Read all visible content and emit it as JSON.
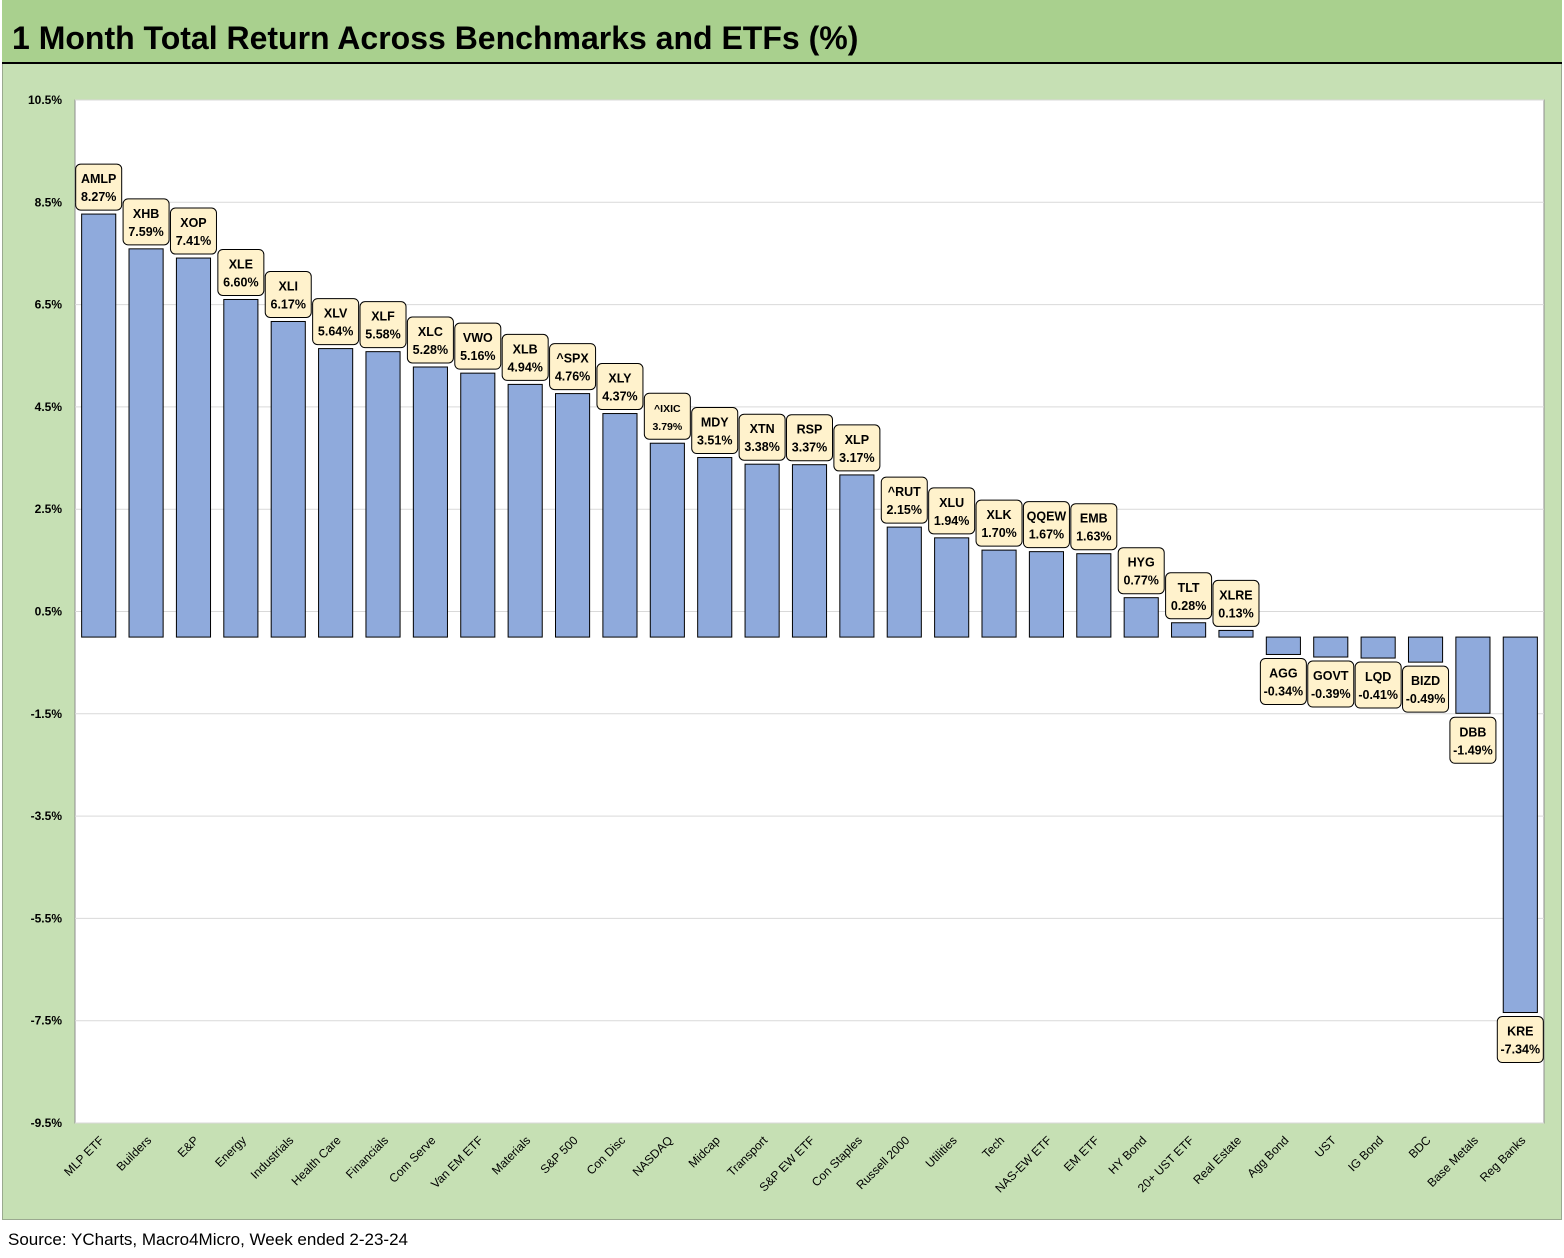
{
  "title": "1 Month Total Return Across Benchmarks and ETFs (%)",
  "source": "Source: YCharts, Macro4Micro, Week ended 2-23-24",
  "colors": {
    "bar_fill": "#8faadc",
    "bar_stroke": "#000000",
    "plot_bg": "#ffffff",
    "frame_bg": "#c6e0b4",
    "title_bg": "#a9d08e",
    "label_bg": "#fff2cc"
  },
  "chart_data": {
    "type": "bar",
    "title": "1 Month Total Return Across Benchmarks and ETFs (%)",
    "xlabel": "",
    "ylabel": "",
    "ylim": [
      -9.5,
      10.5
    ],
    "y_ticks": [
      "10.5%",
      "8.5%",
      "6.5%",
      "4.5%",
      "2.5%",
      "0.5%",
      "-1.5%",
      "-3.5%",
      "-5.5%",
      "-7.5%",
      "-9.5%"
    ],
    "y_tick_values": [
      10.5,
      8.5,
      6.5,
      4.5,
      2.5,
      0.5,
      -1.5,
      -3.5,
      -5.5,
      -7.5,
      -9.5
    ],
    "grid": true,
    "categories": [
      "MLP ETF",
      "Builders",
      "E&P",
      "Energy",
      "Industrials",
      "Health Care",
      "Financials",
      "Com Serve",
      "Van EM ETF",
      "Materials",
      "S&P 500",
      "Con Disc",
      "NASDAQ",
      "Midcap",
      "Transport",
      "S&P EW ETF",
      "Con Staples",
      "Russell 2000",
      "Utilities",
      "Tech",
      "NAS-EW ETF",
      "EM ETF",
      "HY Bond",
      "20+ UST ETF",
      "Real Estate",
      "Agg Bond",
      "UST",
      "IG Bond",
      "BDC",
      "Base Metals",
      "Reg Banks"
    ],
    "tickers": [
      "AMLP",
      "XHB",
      "XOP",
      "XLE",
      "XLI",
      "XLV",
      "XLF",
      "XLC",
      "VWO",
      "XLB",
      "^SPX",
      "XLY",
      "^IXIC",
      "MDY",
      "XTN",
      "RSP",
      "XLP",
      "^RUT",
      "XLU",
      "XLK",
      "QQEW",
      "EMB",
      "HYG",
      "TLT",
      "XLRE",
      "AGG",
      "GOVT",
      "LQD",
      "BIZD",
      "DBB",
      "KRE"
    ],
    "values": [
      8.27,
      7.59,
      7.41,
      6.6,
      6.17,
      5.64,
      5.58,
      5.28,
      5.16,
      4.94,
      4.76,
      4.37,
      3.79,
      3.51,
      3.38,
      3.37,
      3.17,
      2.15,
      1.94,
      1.7,
      1.67,
      1.63,
      0.77,
      0.28,
      0.13,
      -0.34,
      -0.39,
      -0.41,
      -0.49,
      -1.49,
      -7.34
    ],
    "value_labels": [
      "8.27%",
      "7.59%",
      "7.41%",
      "6.60%",
      "6.17%",
      "5.64%",
      "5.58%",
      "5.28%",
      "5.16%",
      "4.94%",
      "4.76%",
      "4.37%",
      "3.79%",
      "3.51%",
      "3.38%",
      "3.37%",
      "3.17%",
      "2.15%",
      "1.94%",
      "1.70%",
      "1.67%",
      "1.63%",
      "0.77%",
      "0.28%",
      "0.13%",
      "-0.34%",
      "-0.39%",
      "-0.41%",
      "-0.49%",
      "-1.49%",
      "-7.34%"
    ]
  }
}
